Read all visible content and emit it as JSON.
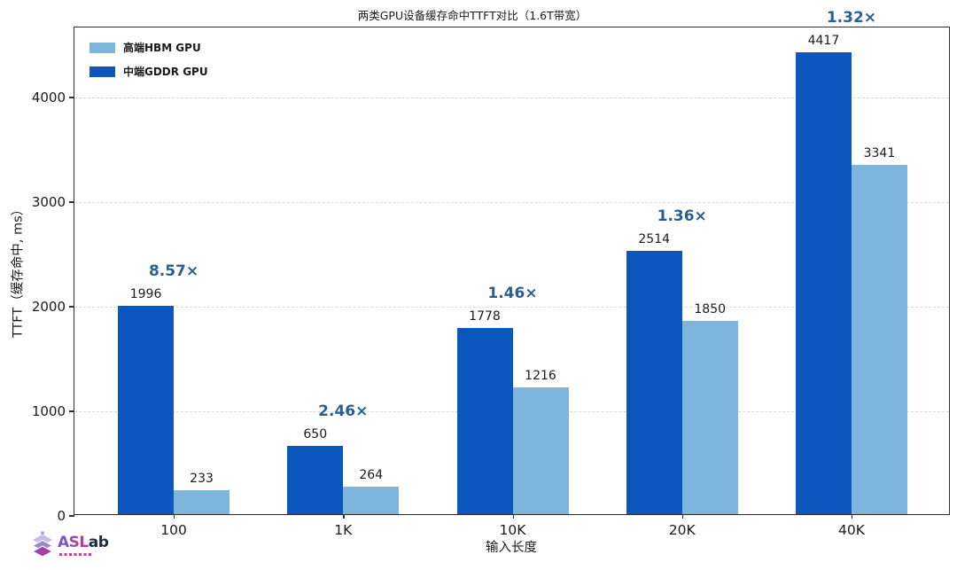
{
  "title": "两类GPU设备缓存命中TTFT对比（1.6T带宽）",
  "chart_data": {
    "type": "bar",
    "categories": [
      "100",
      "1K",
      "10K",
      "20K",
      "40K"
    ],
    "series": [
      {
        "name": "中端GDDR GPU",
        "color": "#0b57bd",
        "values": [
          1996,
          650,
          1778,
          2514,
          4417
        ]
      },
      {
        "name": "高端HBM GPU",
        "color": "#7cb6dd",
        "values": [
          233,
          264,
          1216,
          1850,
          3341
        ]
      }
    ],
    "ratio_labels": [
      "8.57×",
      "2.46×",
      "1.46×",
      "1.36×",
      "1.32×"
    ],
    "ratio_color": "#2a5f8f",
    "xlabel": "输入长度",
    "ylabel": "TTFT（缓存命中, ms）",
    "ylim": [
      0,
      4670
    ],
    "yticks": [
      0,
      1000,
      2000,
      3000,
      4000
    ],
    "grid": "horizontal-dashed",
    "legend_position": "upper-left"
  },
  "legend": {
    "items": [
      {
        "label": "高端HBM GPU",
        "color": "#7cb6dd"
      },
      {
        "label": "中端GDDR GPU",
        "color": "#0b57bd"
      }
    ]
  },
  "logo": {
    "letters": [
      "A",
      "S",
      "L"
    ],
    "letter_colors": [
      "#7d55c0",
      "#a247b2",
      "#c2379d"
    ],
    "suffix": "ab",
    "suffix_color": "#232a38"
  }
}
